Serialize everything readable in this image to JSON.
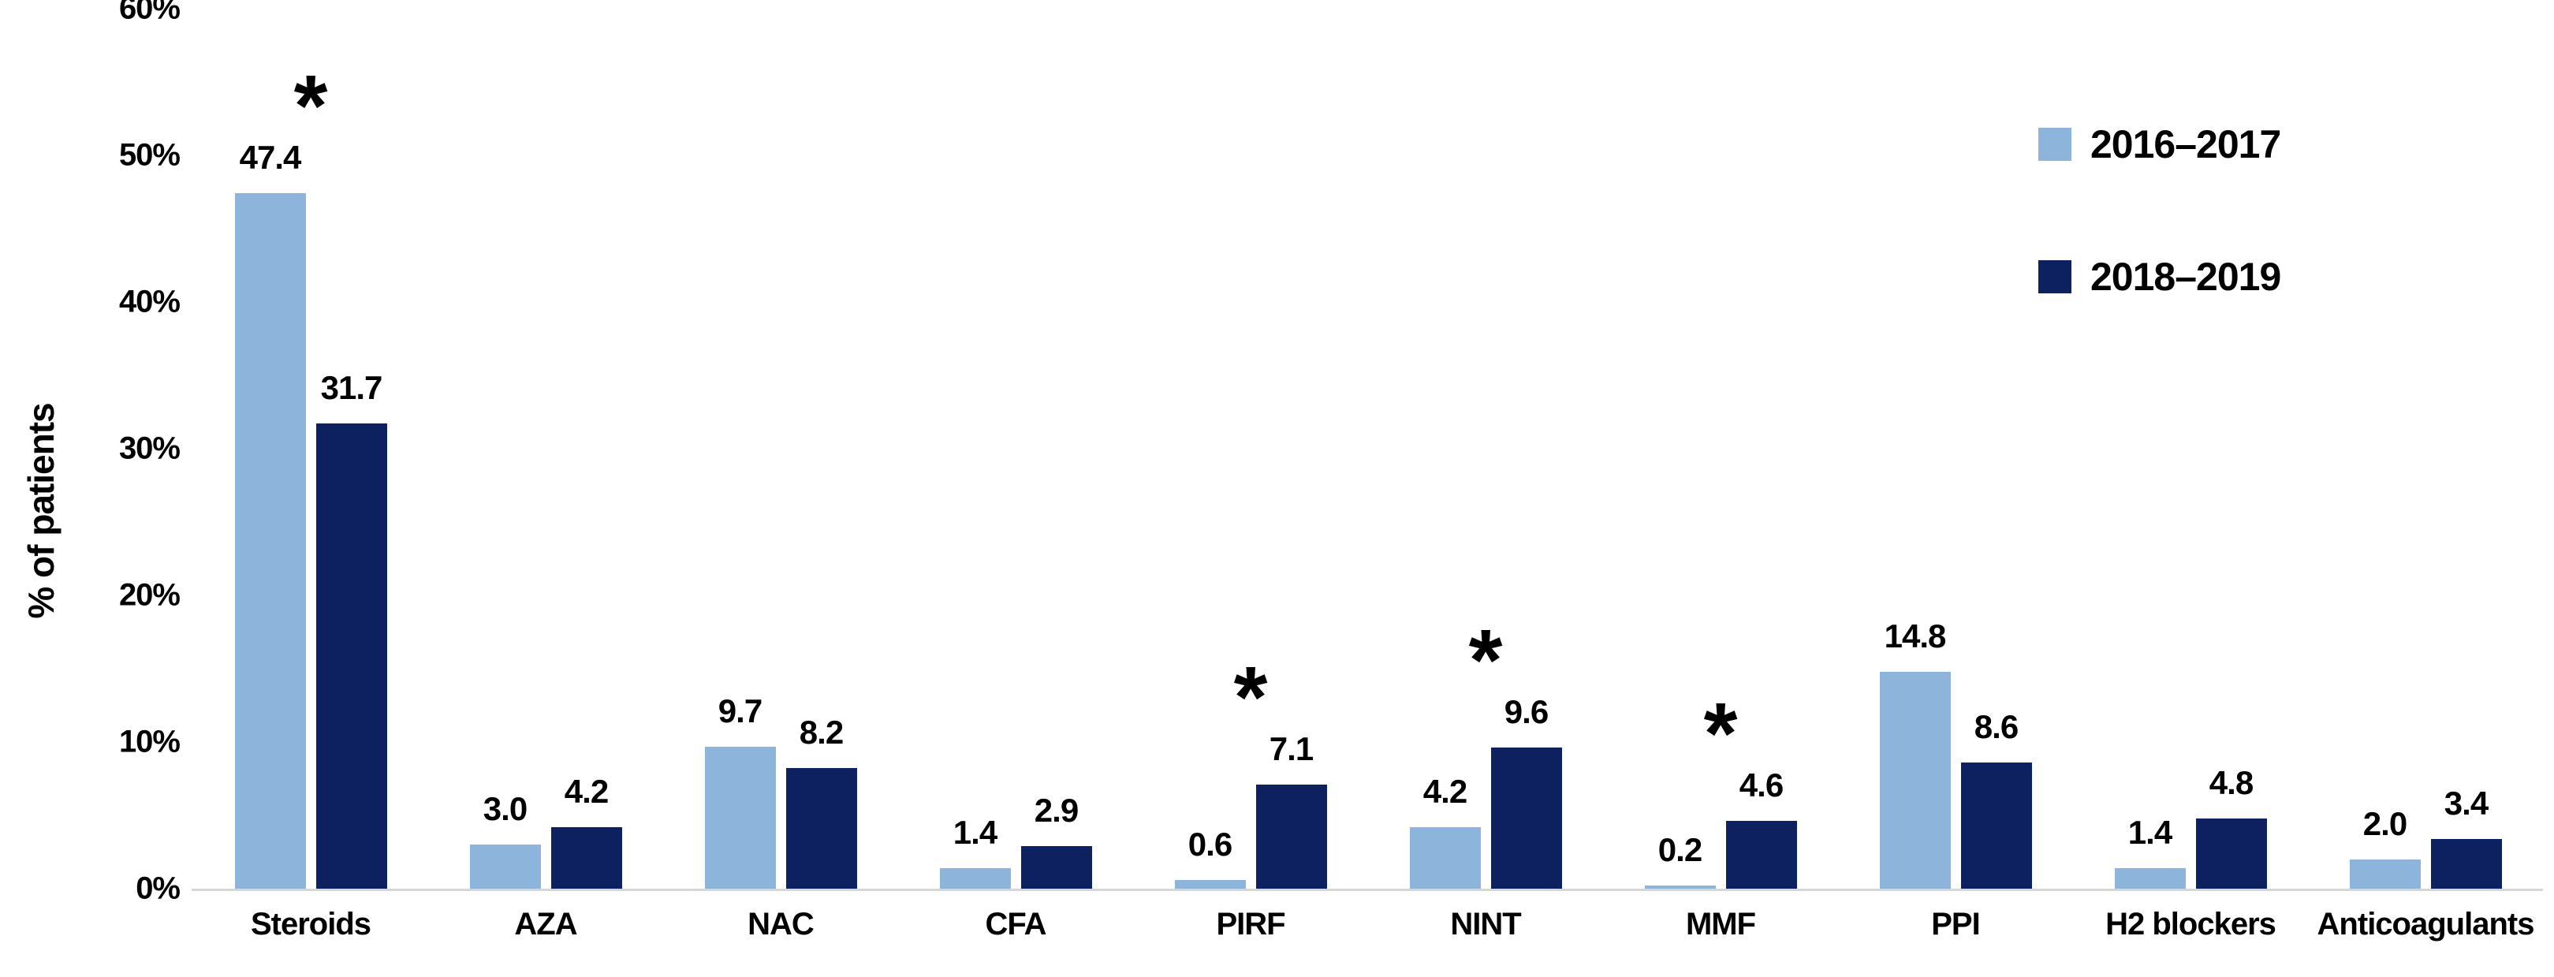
{
  "figure": {
    "background": "#FFFFFF"
  },
  "legend": {
    "position": "top-right",
    "items": [
      {
        "label": "2016–2017",
        "color": "#8DB4DB"
      },
      {
        "label": "2018–2019",
        "color": "#0D2161"
      }
    ]
  },
  "axis": {
    "y_title": "% of patients",
    "y_ticks": [
      "0%",
      "10%",
      "20%",
      "30%",
      "40%",
      "50%",
      "60%"
    ],
    "baseline_color": "#D6D6D6",
    "text_color": "#000000"
  },
  "chart_data": {
    "type": "bar",
    "title": "",
    "xlabel": "",
    "ylabel": "% of patients",
    "ylim": [
      0,
      60
    ],
    "y_tick_step": 10,
    "grid": false,
    "legend_position": "top-right",
    "categories": [
      "Steroids",
      "AZA",
      "NAC",
      "CFA",
      "PIRF",
      "NINT",
      "MMF",
      "PPI",
      "H2 blockers",
      "Anticoagulants"
    ],
    "series": [
      {
        "name": "2016–2017",
        "color": "#8DB4DB",
        "values": [
          47.4,
          3.0,
          9.7,
          1.4,
          0.6,
          4.2,
          0.2,
          14.8,
          1.4,
          2.0
        ],
        "labels": [
          "47.4",
          "3.0",
          "9.7",
          "1.4",
          "0.6",
          "4.2",
          "0.2",
          "14.8",
          "1.4",
          "2.0"
        ]
      },
      {
        "name": "2018–2019",
        "color": "#0D2161",
        "values": [
          31.7,
          4.2,
          8.2,
          2.9,
          7.1,
          9.6,
          4.6,
          8.6,
          4.8,
          3.4
        ],
        "labels": [
          "31.7",
          "4.2",
          "8.2",
          "2.9",
          "7.1",
          "9.6",
          "4.6",
          "8.6",
          "4.8",
          "3.4"
        ]
      }
    ],
    "significance_markers": {
      "symbol": "*",
      "categories": [
        "Steroids",
        "PIRF",
        "NINT",
        "MMF"
      ]
    }
  }
}
